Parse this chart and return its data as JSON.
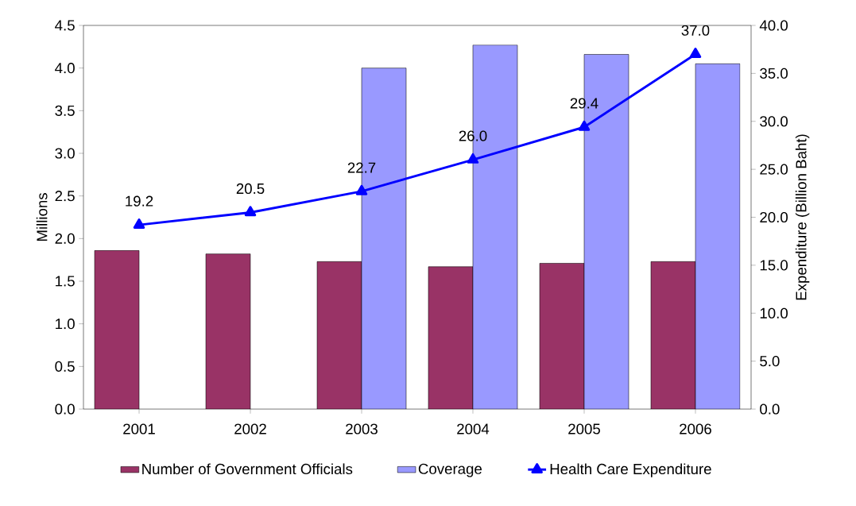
{
  "chart_data": {
    "type": "bar",
    "categories": [
      "2001",
      "2002",
      "2003",
      "2004",
      "2005",
      "2006"
    ],
    "ylabel": "Millions",
    "y2label": "Expenditure (Billion Baht)",
    "ylim": [
      0,
      4.5
    ],
    "yticks": [
      {
        "value": 0,
        "label": "0.0"
      },
      {
        "value": 0.5,
        "label": "0.5"
      },
      {
        "value": 1,
        "label": "1.0"
      },
      {
        "value": 1.5,
        "label": "1.5"
      },
      {
        "value": 2,
        "label": "2.0"
      },
      {
        "value": 2.5,
        "label": "2.5"
      },
      {
        "value": 3,
        "label": "3.0"
      },
      {
        "value": 3.5,
        "label": "3.5"
      },
      {
        "value": 4,
        "label": "4.0"
      },
      {
        "value": 4.5,
        "label": "4.5"
      }
    ],
    "y2lim": [
      0,
      40
    ],
    "y2ticks": [
      {
        "value": 0,
        "label": "0.0"
      },
      {
        "value": 5,
        "label": "5.0"
      },
      {
        "value": 10,
        "label": "10.0"
      },
      {
        "value": 15,
        "label": "15.0"
      },
      {
        "value": 20,
        "label": "20.0"
      },
      {
        "value": 25,
        "label": "25.0"
      },
      {
        "value": 30,
        "label": "30.0"
      },
      {
        "value": 35,
        "label": "35.0"
      },
      {
        "value": 40,
        "label": "40.0"
      }
    ],
    "series": [
      {
        "name": "Number of Government Officials",
        "color": "#993366",
        "values": [
          1.86,
          1.82,
          1.73,
          1.67,
          1.71,
          1.73
        ]
      },
      {
        "name": "Coverage",
        "color": "#9999ff",
        "values": [
          null,
          null,
          4.0,
          4.27,
          4.16,
          4.05
        ]
      },
      {
        "name": "Health Care Expenditure",
        "type": "line",
        "axis": "y2",
        "color": "#0000ff",
        "marker": "triangle",
        "values": [
          19.2,
          20.5,
          22.7,
          26.0,
          29.4,
          37.0
        ],
        "value_labels": [
          "19.2",
          "20.5",
          "22.7",
          "26.0",
          "29.4",
          "37.0"
        ]
      }
    ],
    "legend": "bottom",
    "grid": false
  }
}
